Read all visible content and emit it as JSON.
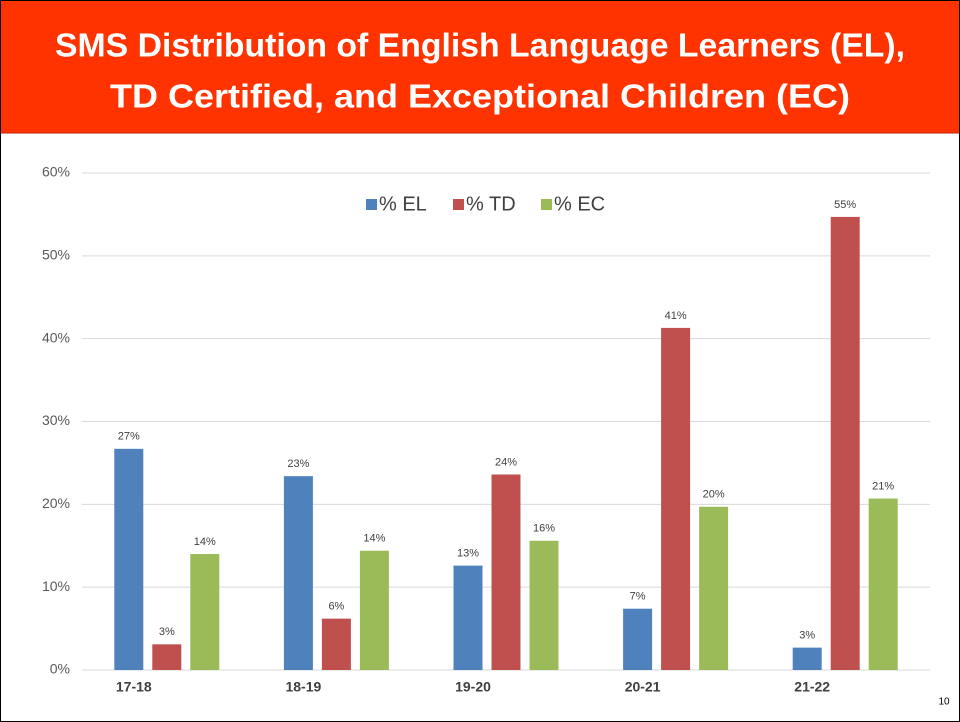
{
  "chart_data": {
    "type": "bar",
    "title": [
      "SMS Distribution of English Language Learners (EL),",
      "TD Certified, and Exceptional Children (EC)"
    ],
    "categories": [
      "17-18",
      "18-19",
      "19-20",
      "20-21",
      "21-22"
    ],
    "series": [
      {
        "name": "% EL",
        "color": "#4f81bd",
        "values": [
          26.7,
          23.4,
          12.6,
          7.4,
          2.7
        ],
        "value_labels": [
          "27%",
          "23%",
          "13%",
          "7%",
          "3%"
        ]
      },
      {
        "name": "% TD",
        "color": "#c0504d",
        "values": [
          3.1,
          6.2,
          23.6,
          41.3,
          54.7
        ],
        "value_labels": [
          "3%",
          "6%",
          "24%",
          "41%",
          "55%"
        ]
      },
      {
        "name": "% EC",
        "color": "#9bbb59",
        "values": [
          14.0,
          14.4,
          15.6,
          19.7,
          20.7
        ],
        "value_labels": [
          "14%",
          "14%",
          "16%",
          "20%",
          "21%"
        ]
      }
    ],
    "ylim": [
      0,
      60
    ],
    "yticks": [
      {
        "value": 0,
        "label": "0%"
      },
      {
        "value": 10,
        "label": "10%"
      },
      {
        "value": 20,
        "label": "20%"
      },
      {
        "value": 30,
        "label": "30%"
      },
      {
        "value": 40,
        "label": "40%"
      },
      {
        "value": 50,
        "label": "50%"
      },
      {
        "value": 60,
        "label": "60%"
      }
    ],
    "grid": true,
    "legend": "top",
    "page_number": "10"
  }
}
